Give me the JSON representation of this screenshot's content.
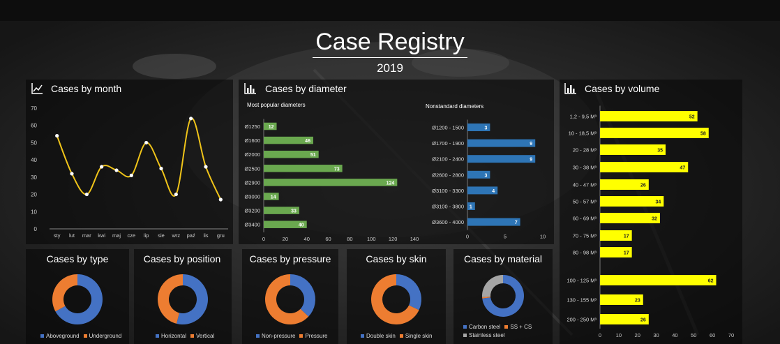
{
  "header": {
    "title": "Case Registry",
    "year": "2019"
  },
  "colors": {
    "line": "#f0c419",
    "green": "#6aa84f",
    "blue": "#2e75b6",
    "yellow": "#ffff00",
    "orange": "#ed7d31",
    "donut_blue": "#4472c4",
    "gray": "#a5a5a5",
    "background": "#141414"
  },
  "icons": {
    "month": "line-chart-icon",
    "diameter": "bar-chart-icon",
    "volume": "bar-chart-icon"
  },
  "chart_data": [
    {
      "id": "month",
      "type": "line",
      "title": "Cases by month",
      "categories": [
        "sty",
        "lut",
        "mar",
        "kwi",
        "maj",
        "cze",
        "lip",
        "sie",
        "wrz",
        "paź",
        "lis",
        "gru"
      ],
      "values": [
        54,
        32,
        20,
        36,
        34,
        31,
        50,
        35,
        20,
        64,
        36,
        17
      ],
      "ylim": [
        0,
        70
      ],
      "yticks": [
        "0",
        "10",
        "20",
        "30",
        "40",
        "50",
        "60",
        "70"
      ]
    },
    {
      "id": "diam_popular",
      "type": "bar",
      "title": "Cases by diameter",
      "subtitle": "Most popular diameters",
      "categories": [
        "Ø1250",
        "Ø1600",
        "Ø2000",
        "Ø2500",
        "Ø2900",
        "Ø3000",
        "Ø3200",
        "Ø3400"
      ],
      "values": [
        12,
        46,
        51,
        73,
        124,
        14,
        33,
        40
      ],
      "xlim": [
        0,
        140
      ],
      "xticks": [
        "0",
        "20",
        "40",
        "60",
        "80",
        "100",
        "120",
        "140"
      ]
    },
    {
      "id": "diam_nonstandard",
      "type": "bar",
      "subtitle": "Nonstandard diameters",
      "categories": [
        "Ø1200 - 1500",
        "Ø1700 - 1900",
        "Ø2100 - 2400",
        "Ø2600 - 2800",
        "Ø3100 - 3300",
        "Ø3100 - 3800",
        "Ø3600 - 4000"
      ],
      "values": [
        3,
        9,
        9,
        3,
        4,
        1,
        7
      ],
      "xlim": [
        0,
        10
      ],
      "xticks": [
        "0",
        "5",
        "10"
      ]
    },
    {
      "id": "volume",
      "type": "bar",
      "title": "Cases by volume",
      "categories": [
        "1,2 - 9,5 M³",
        "10 - 18,5 M³",
        "20 - 28 M³",
        "30 - 38 M³",
        "40 - 47 M³",
        "50 - 57 M³",
        "60 - 69 M³",
        "70 - 75 M³",
        "80 - 98 M³",
        "100 - 125 M³",
        "130 - 155 M³",
        "200 - 250 M³"
      ],
      "values": [
        52,
        58,
        35,
        47,
        26,
        34,
        32,
        17,
        17,
        62,
        23,
        26
      ],
      "xlim": [
        0,
        70
      ],
      "xticks": [
        "0",
        "10",
        "20",
        "30",
        "40",
        "50",
        "60",
        "70"
      ]
    },
    {
      "id": "type",
      "type": "pie",
      "title": "Cases by type",
      "labels": [
        "Aboveground",
        "Underground"
      ],
      "values": [
        67,
        33
      ],
      "colors": [
        "#4472c4",
        "#ed7d31"
      ]
    },
    {
      "id": "position",
      "type": "pie",
      "title": "Cases by position",
      "labels": [
        "Horizontal",
        "Vertical"
      ],
      "values": [
        54,
        46
      ],
      "colors": [
        "#4472c4",
        "#ed7d31"
      ]
    },
    {
      "id": "pressure",
      "type": "pie",
      "title": "Cases by pressure",
      "labels": [
        "Non-pressure",
        "Pressure"
      ],
      "values": [
        37,
        63
      ],
      "colors": [
        "#4472c4",
        "#ed7d31"
      ]
    },
    {
      "id": "skin",
      "type": "pie",
      "title": "Cases by skin",
      "labels": [
        "Double skin",
        "Single skin"
      ],
      "values": [
        32,
        68
      ],
      "colors": [
        "#4472c4",
        "#ed7d31"
      ]
    },
    {
      "id": "material",
      "type": "pie",
      "title": "Cases by material",
      "labels": [
        "Carbon steel",
        "SS + CS",
        "Stainless steel"
      ],
      "values": [
        73,
        1,
        26
      ],
      "colors": [
        "#4472c4",
        "#ed7d31",
        "#a5a5a5"
      ]
    }
  ]
}
